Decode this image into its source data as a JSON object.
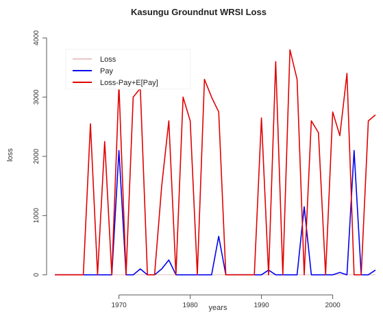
{
  "chart_data": {
    "type": "line",
    "title": "Kasungu Groundnut WRSI Loss",
    "xlabel": "years",
    "ylabel": "loss",
    "xlim": [
      1961,
      2006
    ],
    "ylim": [
      -200,
      4200
    ],
    "xticks": [
      1970,
      1980,
      1990,
      2000
    ],
    "yticks": [
      0,
      1000,
      2000,
      3000,
      4000
    ],
    "legend_position": "top-left",
    "x": [
      1961,
      1962,
      1963,
      1964,
      1965,
      1966,
      1967,
      1968,
      1969,
      1970,
      1971,
      1972,
      1973,
      1974,
      1975,
      1976,
      1977,
      1978,
      1979,
      1980,
      1981,
      1982,
      1983,
      1984,
      1985,
      1986,
      1987,
      1988,
      1989,
      1990,
      1991,
      1992,
      1993,
      1994,
      1995,
      1996,
      1997,
      1998,
      1999,
      2000,
      2001,
      2002,
      2003,
      2004,
      2005,
      2006
    ],
    "series": [
      {
        "name": "Loss",
        "color": "#e8c6c6",
        "values": [
          0,
          0,
          0,
          0,
          0,
          0,
          0,
          0,
          0,
          0,
          0,
          0,
          0,
          0,
          0,
          0,
          0,
          0,
          0,
          0,
          0,
          0,
          0,
          0,
          0,
          0,
          0,
          0,
          0,
          0,
          0,
          0,
          0,
          0,
          0,
          0,
          0,
          0,
          0,
          0,
          0,
          0,
          0,
          0,
          0,
          0
        ]
      },
      {
        "name": "Pay",
        "color": "#0000ee",
        "values": [
          0,
          0,
          0,
          0,
          0,
          0,
          0,
          0,
          0,
          2100,
          0,
          0,
          100,
          0,
          0,
          100,
          250,
          0,
          0,
          0,
          0,
          0,
          0,
          650,
          0,
          0,
          0,
          0,
          0,
          0,
          80,
          0,
          0,
          0,
          0,
          1150,
          0,
          0,
          0,
          0,
          40,
          0,
          2100,
          0,
          0,
          80
        ]
      },
      {
        "name": "Loss-Pay+E[Pay]",
        "color": "#e00000",
        "values": [
          0,
          0,
          0,
          0,
          0,
          2550,
          0,
          2250,
          0,
          3200,
          0,
          3000,
          3150,
          0,
          0,
          1500,
          2600,
          0,
          3000,
          2600,
          0,
          3300,
          3000,
          2750,
          0,
          0,
          0,
          0,
          0,
          2650,
          0,
          3600,
          0,
          3800,
          3300,
          0,
          2600,
          2400,
          0,
          2750,
          2350,
          3400,
          0,
          0,
          2600,
          2700
        ]
      }
    ]
  }
}
